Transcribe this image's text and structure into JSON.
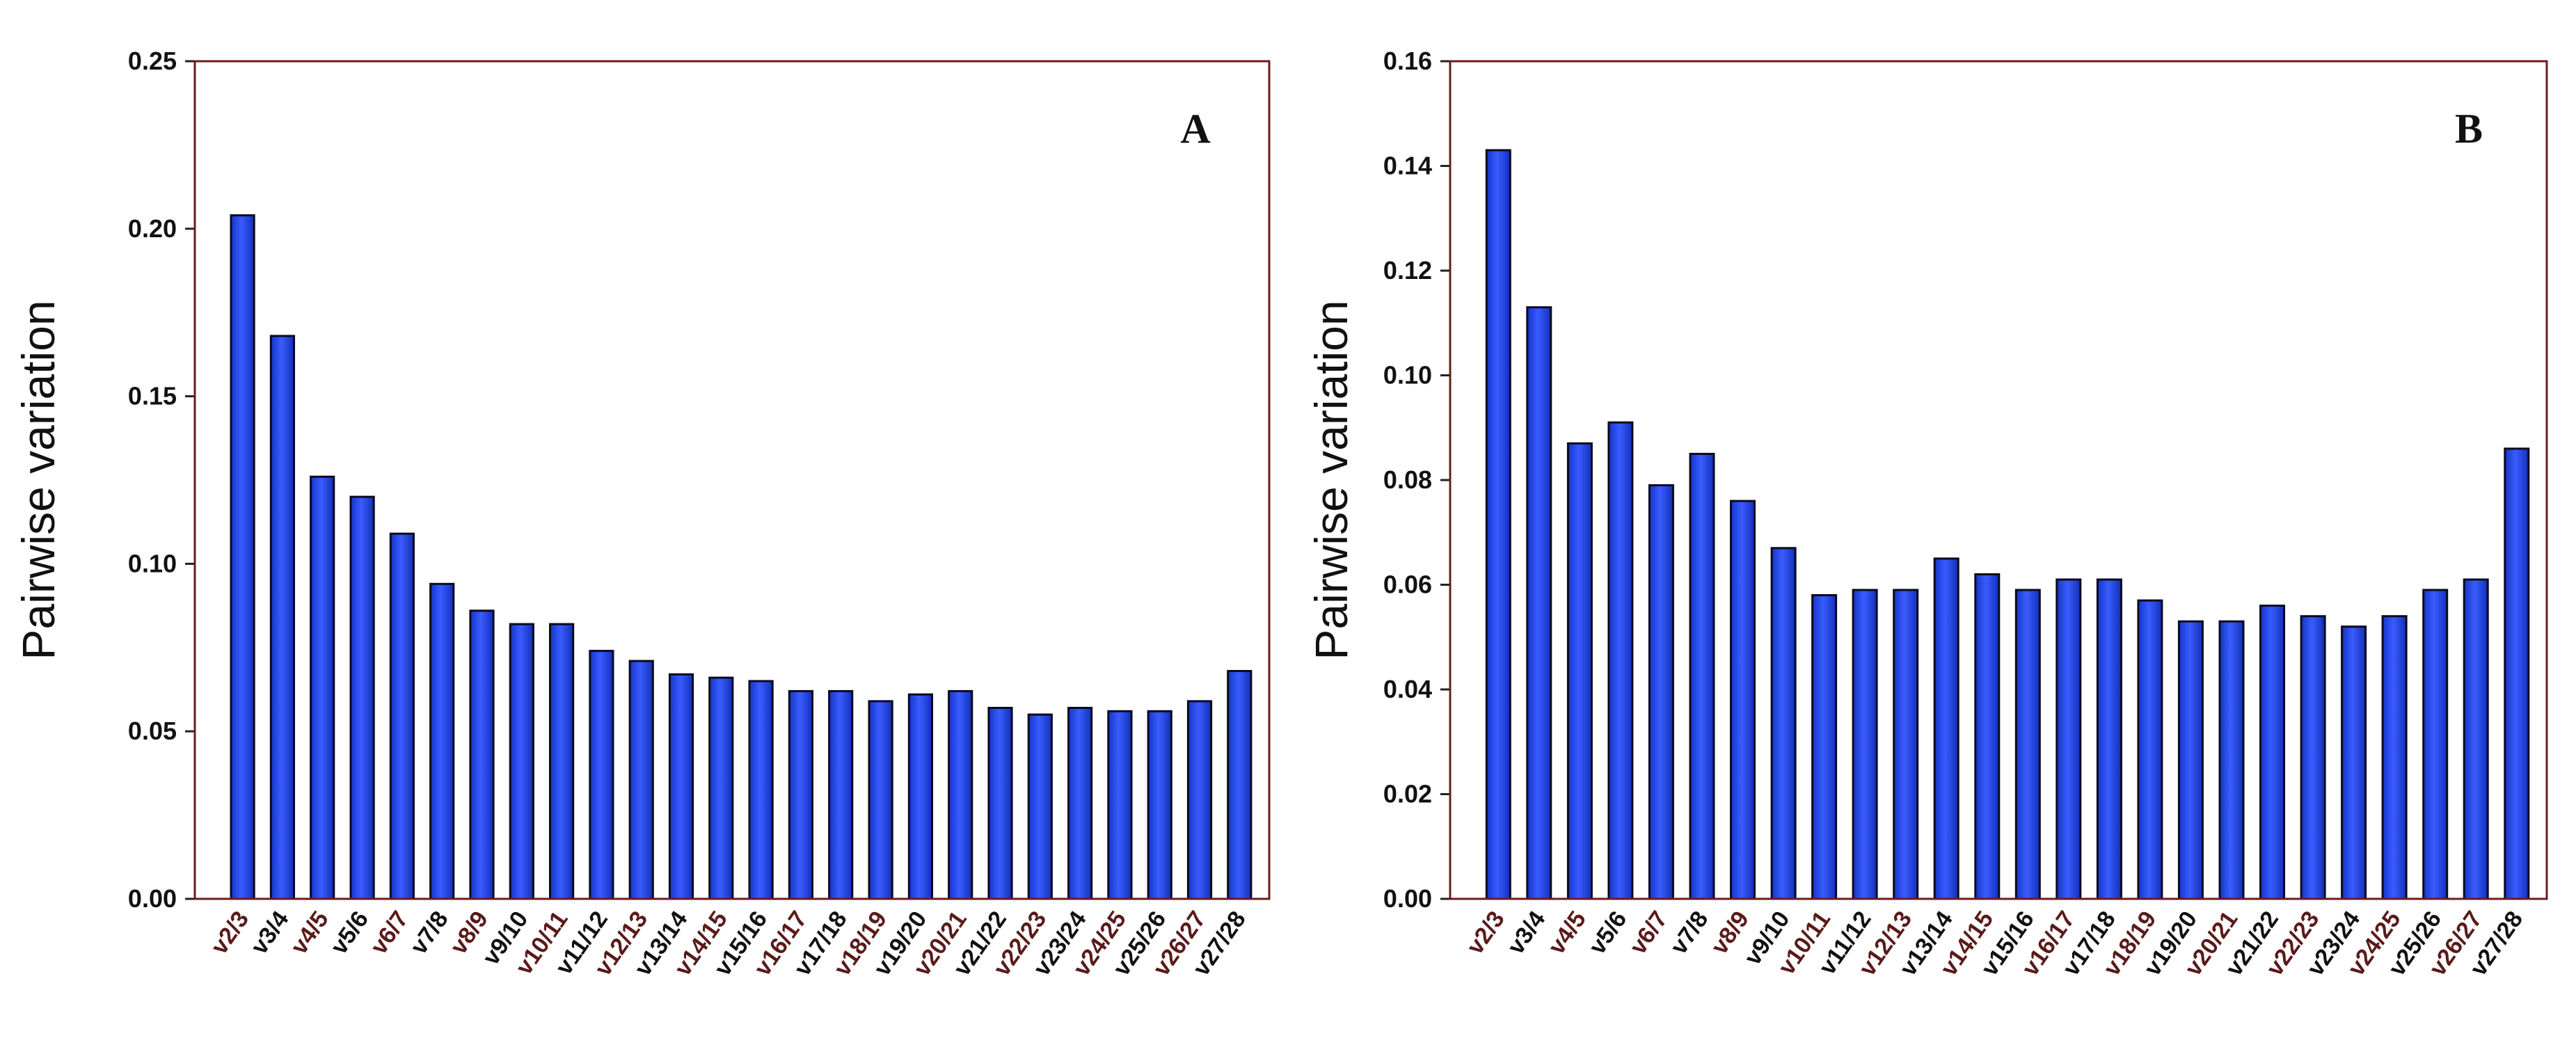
{
  "colors": {
    "bar_fill": "#1d3ee0",
    "bar_highlight": "#4a6cff",
    "frame": "#6b1c1c",
    "tick_label_odd": "#5a1a1a",
    "tick_label_even": "#111111"
  },
  "chart_data": [
    {
      "type": "bar",
      "panel_label": "A",
      "title": "",
      "xlabel": "",
      "ylabel": "Pairwise variation",
      "ylim": [
        0,
        0.25
      ],
      "yticks": [
        "0.00",
        "0.05",
        "0.10",
        "0.15",
        "0.20",
        "0.25"
      ],
      "ytick_values": [
        0,
        0.05,
        0.1,
        0.15,
        0.2,
        0.25
      ],
      "categories": [
        "v2/3",
        "v3/4",
        "v4/5",
        "v5/6",
        "v6/7",
        "v7/8",
        "v8/9",
        "v9/10",
        "v10/11",
        "v11/12",
        "v12/13",
        "v13/14",
        "v14/15",
        "v15/16",
        "v16/17",
        "v17/18",
        "v18/19",
        "v19/20",
        "v20/21",
        "v21/22",
        "v22/23",
        "v23/24",
        "v24/25",
        "v25/26",
        "v26/27",
        "v27/28"
      ],
      "values": [
        0.204,
        0.168,
        0.126,
        0.12,
        0.109,
        0.094,
        0.086,
        0.082,
        0.082,
        0.074,
        0.071,
        0.067,
        0.066,
        0.065,
        0.062,
        0.062,
        0.059,
        0.061,
        0.062,
        0.057,
        0.055,
        0.057,
        0.056,
        0.056,
        0.059,
        0.068
      ]
    },
    {
      "type": "bar",
      "panel_label": "B",
      "title": "",
      "xlabel": "",
      "ylabel": "Pairwise variation",
      "ylim": [
        0,
        0.16
      ],
      "yticks": [
        "0.00",
        "0.02",
        "0.04",
        "0.06",
        "0.08",
        "0.10",
        "0.12",
        "0.14",
        "0.16"
      ],
      "ytick_values": [
        0,
        0.02,
        0.04,
        0.06,
        0.08,
        0.1,
        0.12,
        0.14,
        0.16
      ],
      "categories": [
        "v2/3",
        "v3/4",
        "v4/5",
        "v5/6",
        "v6/7",
        "v7/8",
        "v8/9",
        "v9/10",
        "v10/11",
        "v11/12",
        "v12/13",
        "v13/14",
        "v14/15",
        "v15/16",
        "v16/17",
        "v17/18",
        "v18/19",
        "v19/20",
        "v20/21",
        "v21/22",
        "v22/23",
        "v23/24",
        "v24/25",
        "v25/26",
        "v26/27",
        "v27/28"
      ],
      "values": [
        0.143,
        0.113,
        0.087,
        0.091,
        0.079,
        0.085,
        0.076,
        0.067,
        0.058,
        0.059,
        0.059,
        0.065,
        0.062,
        0.059,
        0.061,
        0.061,
        0.057,
        0.053,
        0.053,
        0.056,
        0.054,
        0.052,
        0.054,
        0.059,
        0.061,
        0.086
      ]
    }
  ]
}
